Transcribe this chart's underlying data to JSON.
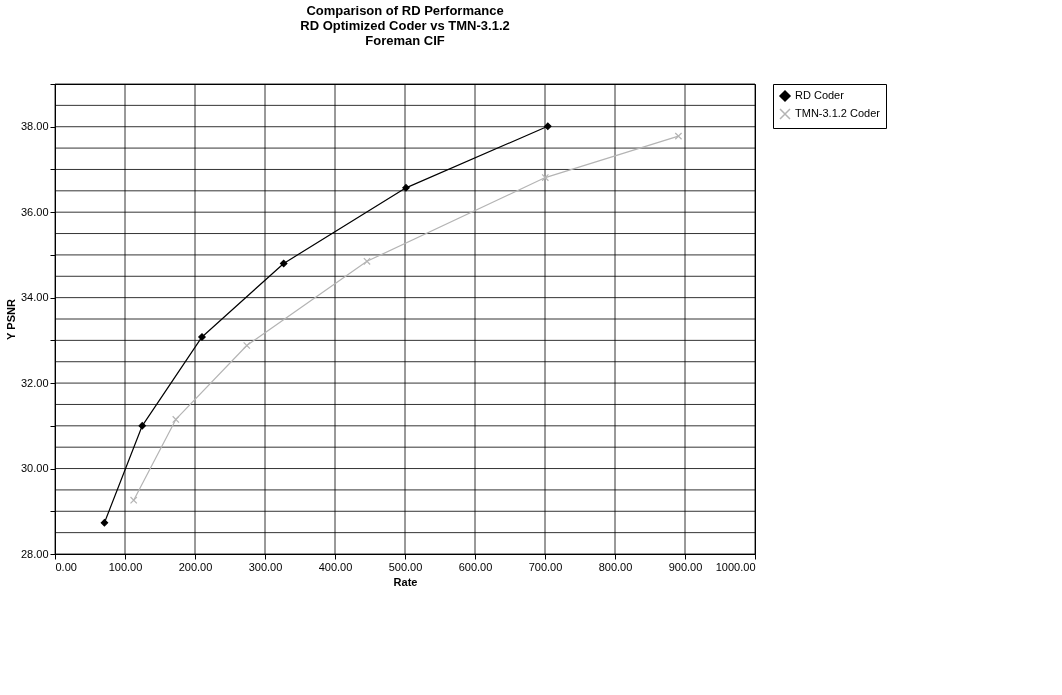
{
  "chart_data": {
    "type": "line",
    "title": "Comparison of RD Performance\nRD Optimized Coder vs TMN-3.1.2\nForeman CIF",
    "xlabel": "Rate",
    "ylabel": "Y PSNR",
    "series": [
      {
        "name": "RD Coder",
        "color": "#000000",
        "marker": "diamond",
        "x": [
          70.6,
          124.6,
          210,
          326.7,
          501.4,
          704
        ],
        "values": [
          28.73,
          31.0,
          33.08,
          34.8,
          36.57,
          38.01
        ]
      },
      {
        "name": "TMN-3.1.2 Coder",
        "color": "#b4b4b4",
        "marker": "cross",
        "x": [
          112.4,
          172.6,
          274,
          445.7,
          700.4,
          890.6
        ],
        "values": [
          29.26,
          31.15,
          32.88,
          34.85,
          36.81,
          37.78
        ]
      }
    ],
    "xlim": [
      0,
      1000
    ],
    "xticks": [
      {
        "value": 0,
        "label": "0.00"
      },
      {
        "value": 100,
        "label": "100.00"
      },
      {
        "value": 200,
        "label": "200.00"
      },
      {
        "value": 300,
        "label": "300.00"
      },
      {
        "value": 400,
        "label": "400.00"
      },
      {
        "value": 500,
        "label": "500.00"
      },
      {
        "value": 600,
        "label": "600.00"
      },
      {
        "value": 700,
        "label": "700.00"
      },
      {
        "value": 800,
        "label": "800.00"
      },
      {
        "value": 900,
        "label": "900.00"
      },
      {
        "value": 1000,
        "label": "1000.00"
      }
    ],
    "ylim": [
      28,
      39
    ],
    "yticks": [
      {
        "value": 28,
        "label": "28.00"
      },
      {
        "value": 28.5,
        "label": null
      },
      {
        "value": 29,
        "label": null
      },
      {
        "value": 29.5,
        "label": null
      },
      {
        "value": 30,
        "label": "30.00"
      },
      {
        "value": 30.5,
        "label": null
      },
      {
        "value": 31,
        "label": null
      },
      {
        "value": 31.5,
        "label": null
      },
      {
        "value": 32,
        "label": "32.00"
      },
      {
        "value": 32.5,
        "label": null
      },
      {
        "value": 33,
        "label": null
      },
      {
        "value": 33.5,
        "label": null
      },
      {
        "value": 34,
        "label": "34.00"
      },
      {
        "value": 34.5,
        "label": null
      },
      {
        "value": 35,
        "label": null
      },
      {
        "value": 35.5,
        "label": null
      },
      {
        "value": 36,
        "label": "36.00"
      },
      {
        "value": 36.5,
        "label": null
      },
      {
        "value": 37,
        "label": null
      },
      {
        "value": 37.5,
        "label": null
      },
      {
        "value": 38,
        "label": "38.00"
      },
      {
        "value": 38.5,
        "label": null
      },
      {
        "value": 39,
        "label": null
      }
    ],
    "grid": true,
    "legend": "right",
    "line_style": "solid"
  }
}
